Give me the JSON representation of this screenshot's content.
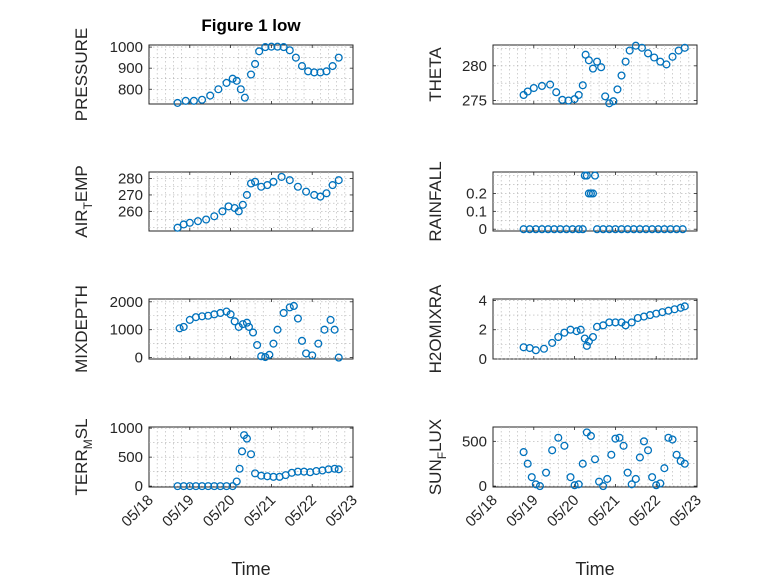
{
  "figure": {
    "title": "Figure 1 low",
    "xlabel": "Time"
  },
  "colors": {
    "marker": "#0072BD",
    "axis": "#262626",
    "grid": "#b0b0b0"
  },
  "chart_data": [
    {
      "type": "scatter",
      "ylabel": "PRESSURE",
      "ylabel_sub": "",
      "ylabel_tail": "",
      "ylim": [
        730,
        1010
      ],
      "yticks": [
        800,
        900,
        1000
      ],
      "ytick_labels": [
        "800",
        "900",
        "1000"
      ],
      "x": [
        18.7,
        18.9,
        19.1,
        19.3,
        19.5,
        19.7,
        19.9,
        20.05,
        20.15,
        20.25,
        20.35,
        20.5,
        20.6,
        20.7,
        20.85,
        21.0,
        21.15,
        21.3,
        21.45,
        21.6,
        21.75,
        21.9,
        22.05,
        22.2,
        22.35,
        22.5,
        22.65
      ],
      "y": [
        735,
        745,
        745,
        750,
        770,
        800,
        830,
        850,
        840,
        800,
        760,
        870,
        920,
        980,
        1000,
        1002,
        1002,
        1000,
        985,
        950,
        910,
        885,
        880,
        880,
        885,
        910,
        950
      ]
    },
    {
      "type": "scatter",
      "ylabel": "THETA",
      "ylabel_sub": "",
      "ylabel_tail": "",
      "ylim": [
        274.5,
        283
      ],
      "yticks": [
        275,
        280
      ],
      "ytick_labels": [
        "275",
        "280"
      ],
      "x": [
        18.75,
        18.85,
        19.0,
        19.2,
        19.4,
        19.55,
        19.7,
        19.85,
        20.0,
        20.1,
        20.2,
        20.27,
        20.35,
        20.45,
        20.55,
        20.65,
        20.75,
        20.85,
        20.95,
        21.05,
        21.15,
        21.25,
        21.35,
        21.5,
        21.65,
        21.8,
        21.95,
        22.1,
        22.25,
        22.4,
        22.55,
        22.7
      ],
      "y": [
        275.8,
        276.3,
        276.8,
        277.1,
        277.3,
        276.2,
        275.1,
        275.0,
        275.2,
        275.8,
        277.2,
        281.6,
        280.8,
        279.6,
        280.6,
        279.8,
        275.6,
        274.6,
        274.9,
        276.6,
        278.6,
        280.6,
        282.2,
        282.9,
        282.6,
        281.8,
        281.2,
        280.6,
        280.2,
        281.3,
        282.2,
        282.6
      ]
    },
    {
      "type": "scatter",
      "ylabel": "AIR",
      "ylabel_sub": "T",
      "ylabel_tail": "EMP",
      "ylim": [
        248,
        284
      ],
      "yticks": [
        260,
        270,
        280
      ],
      "ytick_labels": [
        "260",
        "270",
        "280"
      ],
      "x": [
        18.7,
        18.85,
        19.0,
        19.2,
        19.4,
        19.6,
        19.8,
        19.95,
        20.1,
        20.2,
        20.3,
        20.4,
        20.5,
        20.6,
        20.75,
        20.9,
        21.05,
        21.25,
        21.45,
        21.65,
        21.85,
        22.05,
        22.2,
        22.35,
        22.5,
        22.65
      ],
      "y": [
        250,
        252,
        253,
        254,
        255,
        257,
        260,
        263,
        262,
        260,
        264,
        270,
        277,
        278,
        275,
        276,
        278,
        281,
        279,
        275,
        272,
        270,
        269,
        271,
        276,
        279
      ]
    },
    {
      "type": "scatter",
      "ylabel": "RAINFALL",
      "ylabel_sub": "",
      "ylabel_tail": "",
      "ylim": [
        -0.01,
        0.32
      ],
      "yticks": [
        0,
        0.1,
        0.2
      ],
      "ytick_labels": [
        "0",
        "0.1",
        "0.2"
      ],
      "x": [
        18.75,
        18.9,
        19.05,
        19.2,
        19.35,
        19.5,
        19.65,
        19.8,
        19.95,
        20.1,
        20.2,
        20.25,
        20.3,
        20.35,
        20.4,
        20.45,
        20.5,
        20.55,
        20.7,
        20.85,
        21.0,
        21.15,
        21.3,
        21.45,
        21.6,
        21.75,
        21.9,
        22.05,
        22.2,
        22.35,
        22.5,
        22.65
      ],
      "y": [
        0,
        0,
        0,
        0,
        0,
        0,
        0,
        0,
        0,
        0,
        0,
        0.3,
        0.3,
        0.2,
        0.2,
        0.2,
        0.3,
        0,
        0,
        0,
        0,
        0,
        0,
        0,
        0,
        0,
        0,
        0,
        0,
        0,
        0,
        0
      ]
    },
    {
      "type": "scatter",
      "ylabel": "MIXDEPTH",
      "ylabel_sub": "",
      "ylabel_tail": "",
      "ylim": [
        -50,
        2100
      ],
      "yticks": [
        0,
        1000,
        2000
      ],
      "ytick_labels": [
        "0",
        "1000",
        "2000"
      ],
      "x": [
        18.75,
        18.85,
        19.0,
        19.15,
        19.3,
        19.45,
        19.6,
        19.75,
        19.9,
        20.0,
        20.1,
        20.2,
        20.3,
        20.4,
        20.45,
        20.55,
        20.65,
        20.75,
        20.85,
        20.95,
        21.05,
        21.15,
        21.3,
        21.45,
        21.55,
        21.65,
        21.75,
        21.85,
        22.0,
        22.15,
        22.3,
        22.45,
        22.55,
        22.65
      ],
      "y": [
        1050,
        1100,
        1350,
        1450,
        1480,
        1500,
        1550,
        1600,
        1650,
        1550,
        1300,
        1100,
        1200,
        1250,
        1100,
        900,
        450,
        50,
        20,
        100,
        500,
        1000,
        1600,
        1800,
        1850,
        1400,
        600,
        150,
        80,
        500,
        1000,
        1350,
        1000,
        0
      ]
    },
    {
      "type": "scatter",
      "ylabel": "H2OMIXRA",
      "ylabel_sub": "",
      "ylabel_tail": "",
      "ylim": [
        0,
        4.1
      ],
      "yticks": [
        0,
        2,
        4
      ],
      "ytick_labels": [
        "0",
        "2",
        "4"
      ],
      "x": [
        18.75,
        18.9,
        19.05,
        19.25,
        19.45,
        19.6,
        19.75,
        19.9,
        20.05,
        20.15,
        20.25,
        20.3,
        20.35,
        20.45,
        20.55,
        20.7,
        20.85,
        21.0,
        21.15,
        21.25,
        21.4,
        21.55,
        21.7,
        21.85,
        22.0,
        22.15,
        22.3,
        22.45,
        22.6,
        22.7
      ],
      "y": [
        0.8,
        0.75,
        0.6,
        0.7,
        1.1,
        1.5,
        1.8,
        2.0,
        1.9,
        2.0,
        1.4,
        0.9,
        1.2,
        1.5,
        2.2,
        2.3,
        2.5,
        2.5,
        2.5,
        2.3,
        2.5,
        2.8,
        2.9,
        3.0,
        3.1,
        3.2,
        3.3,
        3.4,
        3.5,
        3.6
      ]
    },
    {
      "type": "scatter",
      "ylabel": "TERR",
      "ylabel_sub": "M",
      "ylabel_tail": "SL",
      "ylim": [
        -15,
        1020
      ],
      "yticks": [
        0,
        500,
        1000
      ],
      "ytick_labels": [
        "0",
        "500",
        "1000"
      ],
      "x": [
        18.7,
        18.85,
        19.0,
        19.15,
        19.3,
        19.45,
        19.6,
        19.75,
        19.9,
        20.05,
        20.15,
        20.22,
        20.28,
        20.33,
        20.4,
        20.5,
        20.6,
        20.75,
        20.9,
        21.05,
        21.2,
        21.35,
        21.5,
        21.65,
        21.8,
        21.95,
        22.1,
        22.25,
        22.4,
        22.55,
        22.65
      ],
      "y": [
        0,
        0,
        0,
        0,
        0,
        0,
        0,
        0,
        0,
        0,
        80,
        300,
        600,
        880,
        820,
        550,
        220,
        180,
        170,
        160,
        160,
        190,
        230,
        250,
        250,
        240,
        260,
        270,
        290,
        300,
        290
      ]
    },
    {
      "type": "scatter",
      "ylabel": "SUN",
      "ylabel_sub": "F",
      "ylabel_tail": "LUX",
      "ylim": [
        -10,
        660
      ],
      "yticks": [
        0,
        500
      ],
      "ytick_labels": [
        "0",
        "500"
      ],
      "x": [
        18.75,
        18.85,
        18.95,
        19.05,
        19.15,
        19.3,
        19.45,
        19.6,
        19.75,
        19.9,
        20.0,
        20.1,
        20.2,
        20.3,
        20.4,
        20.5,
        20.6,
        20.7,
        20.8,
        20.9,
        21.0,
        21.1,
        21.2,
        21.3,
        21.4,
        21.5,
        21.6,
        21.7,
        21.8,
        21.9,
        22.0,
        22.1,
        22.2,
        22.3,
        22.4,
        22.5,
        22.6,
        22.7
      ],
      "y": [
        380,
        250,
        100,
        20,
        0,
        150,
        400,
        540,
        450,
        100,
        10,
        20,
        250,
        600,
        560,
        300,
        50,
        0,
        80,
        350,
        530,
        540,
        450,
        150,
        20,
        80,
        320,
        500,
        400,
        100,
        10,
        30,
        200,
        540,
        520,
        350,
        280,
        250
      ]
    }
  ],
  "x_axis": {
    "xlim": [
      18,
      23
    ],
    "ticks": [
      18,
      19,
      20,
      21,
      22,
      23
    ],
    "tick_labels": [
      "05/18",
      "05/19",
      "05/20",
      "05/21",
      "05/22",
      "05/23"
    ]
  }
}
